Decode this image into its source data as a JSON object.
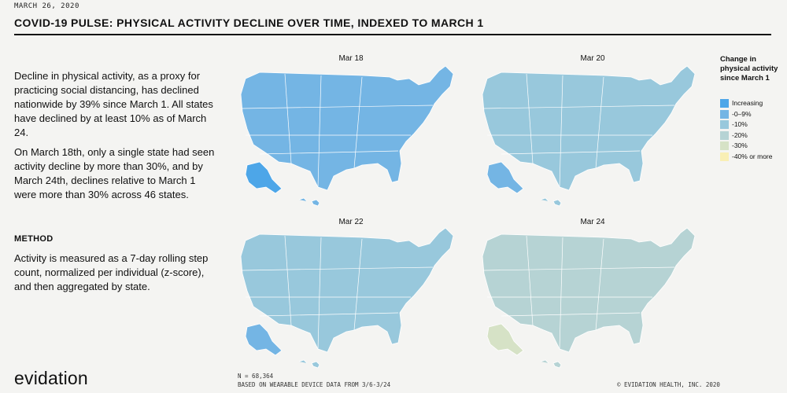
{
  "header": {
    "date": "MARCH 26, 2020",
    "title": "COVID-19 PULSE: PHYSICAL ACTIVITY DECLINE OVER TIME, INDEXED TO MARCH 1"
  },
  "body_text": {
    "paragraph_1": "Decline in physical activity, as a proxy for practicing social distancing, has declined nationwide by 39% since March 1. All states have declined by at least 10% as of March 24.",
    "paragraph_2": "On March 18th, only a single state had seen activity decline by more than 30%, and by March 24th, declines relative to March 1 were more than 30% across 46 states.",
    "method_heading": "METHOD",
    "method_text": "Activity is measured as a 7-day rolling step count, normalized per individual (z-score), and then aggregated by state."
  },
  "maps": [
    {
      "label": "Mar 18",
      "base": "c10",
      "highlight": "c0"
    },
    {
      "label": "Mar 20",
      "base": "c20",
      "highlight": "c10"
    },
    {
      "label": "Mar 22",
      "base": "c20",
      "highlight": "c10"
    },
    {
      "label": "Mar 24",
      "base": "c30",
      "highlight": "c40"
    }
  ],
  "legend": {
    "title": "Change in physical activity since March 1",
    "items": [
      {
        "key": "c0",
        "label": "Increasing",
        "color": "#4da6e8"
      },
      {
        "key": "c10",
        "label": "-0–9%",
        "color": "#74b5e4"
      },
      {
        "key": "c20",
        "label": "-10%",
        "color": "#98c8dc"
      },
      {
        "key": "c30",
        "label": "-20%",
        "color": "#b6d3d4"
      },
      {
        "key": "c40",
        "label": "-30%",
        "color": "#d6e2c6"
      },
      {
        "key": "c50",
        "label": "-40% or more",
        "color": "#f9efb5"
      }
    ]
  },
  "footer": {
    "logo": "evidation",
    "n_label": "N = 68,364",
    "basis": "BASED ON WEARABLE DEVICE DATA FROM 3/6-3/24",
    "copyright": "© EVIDATION HEALTH, INC. 2020"
  }
}
